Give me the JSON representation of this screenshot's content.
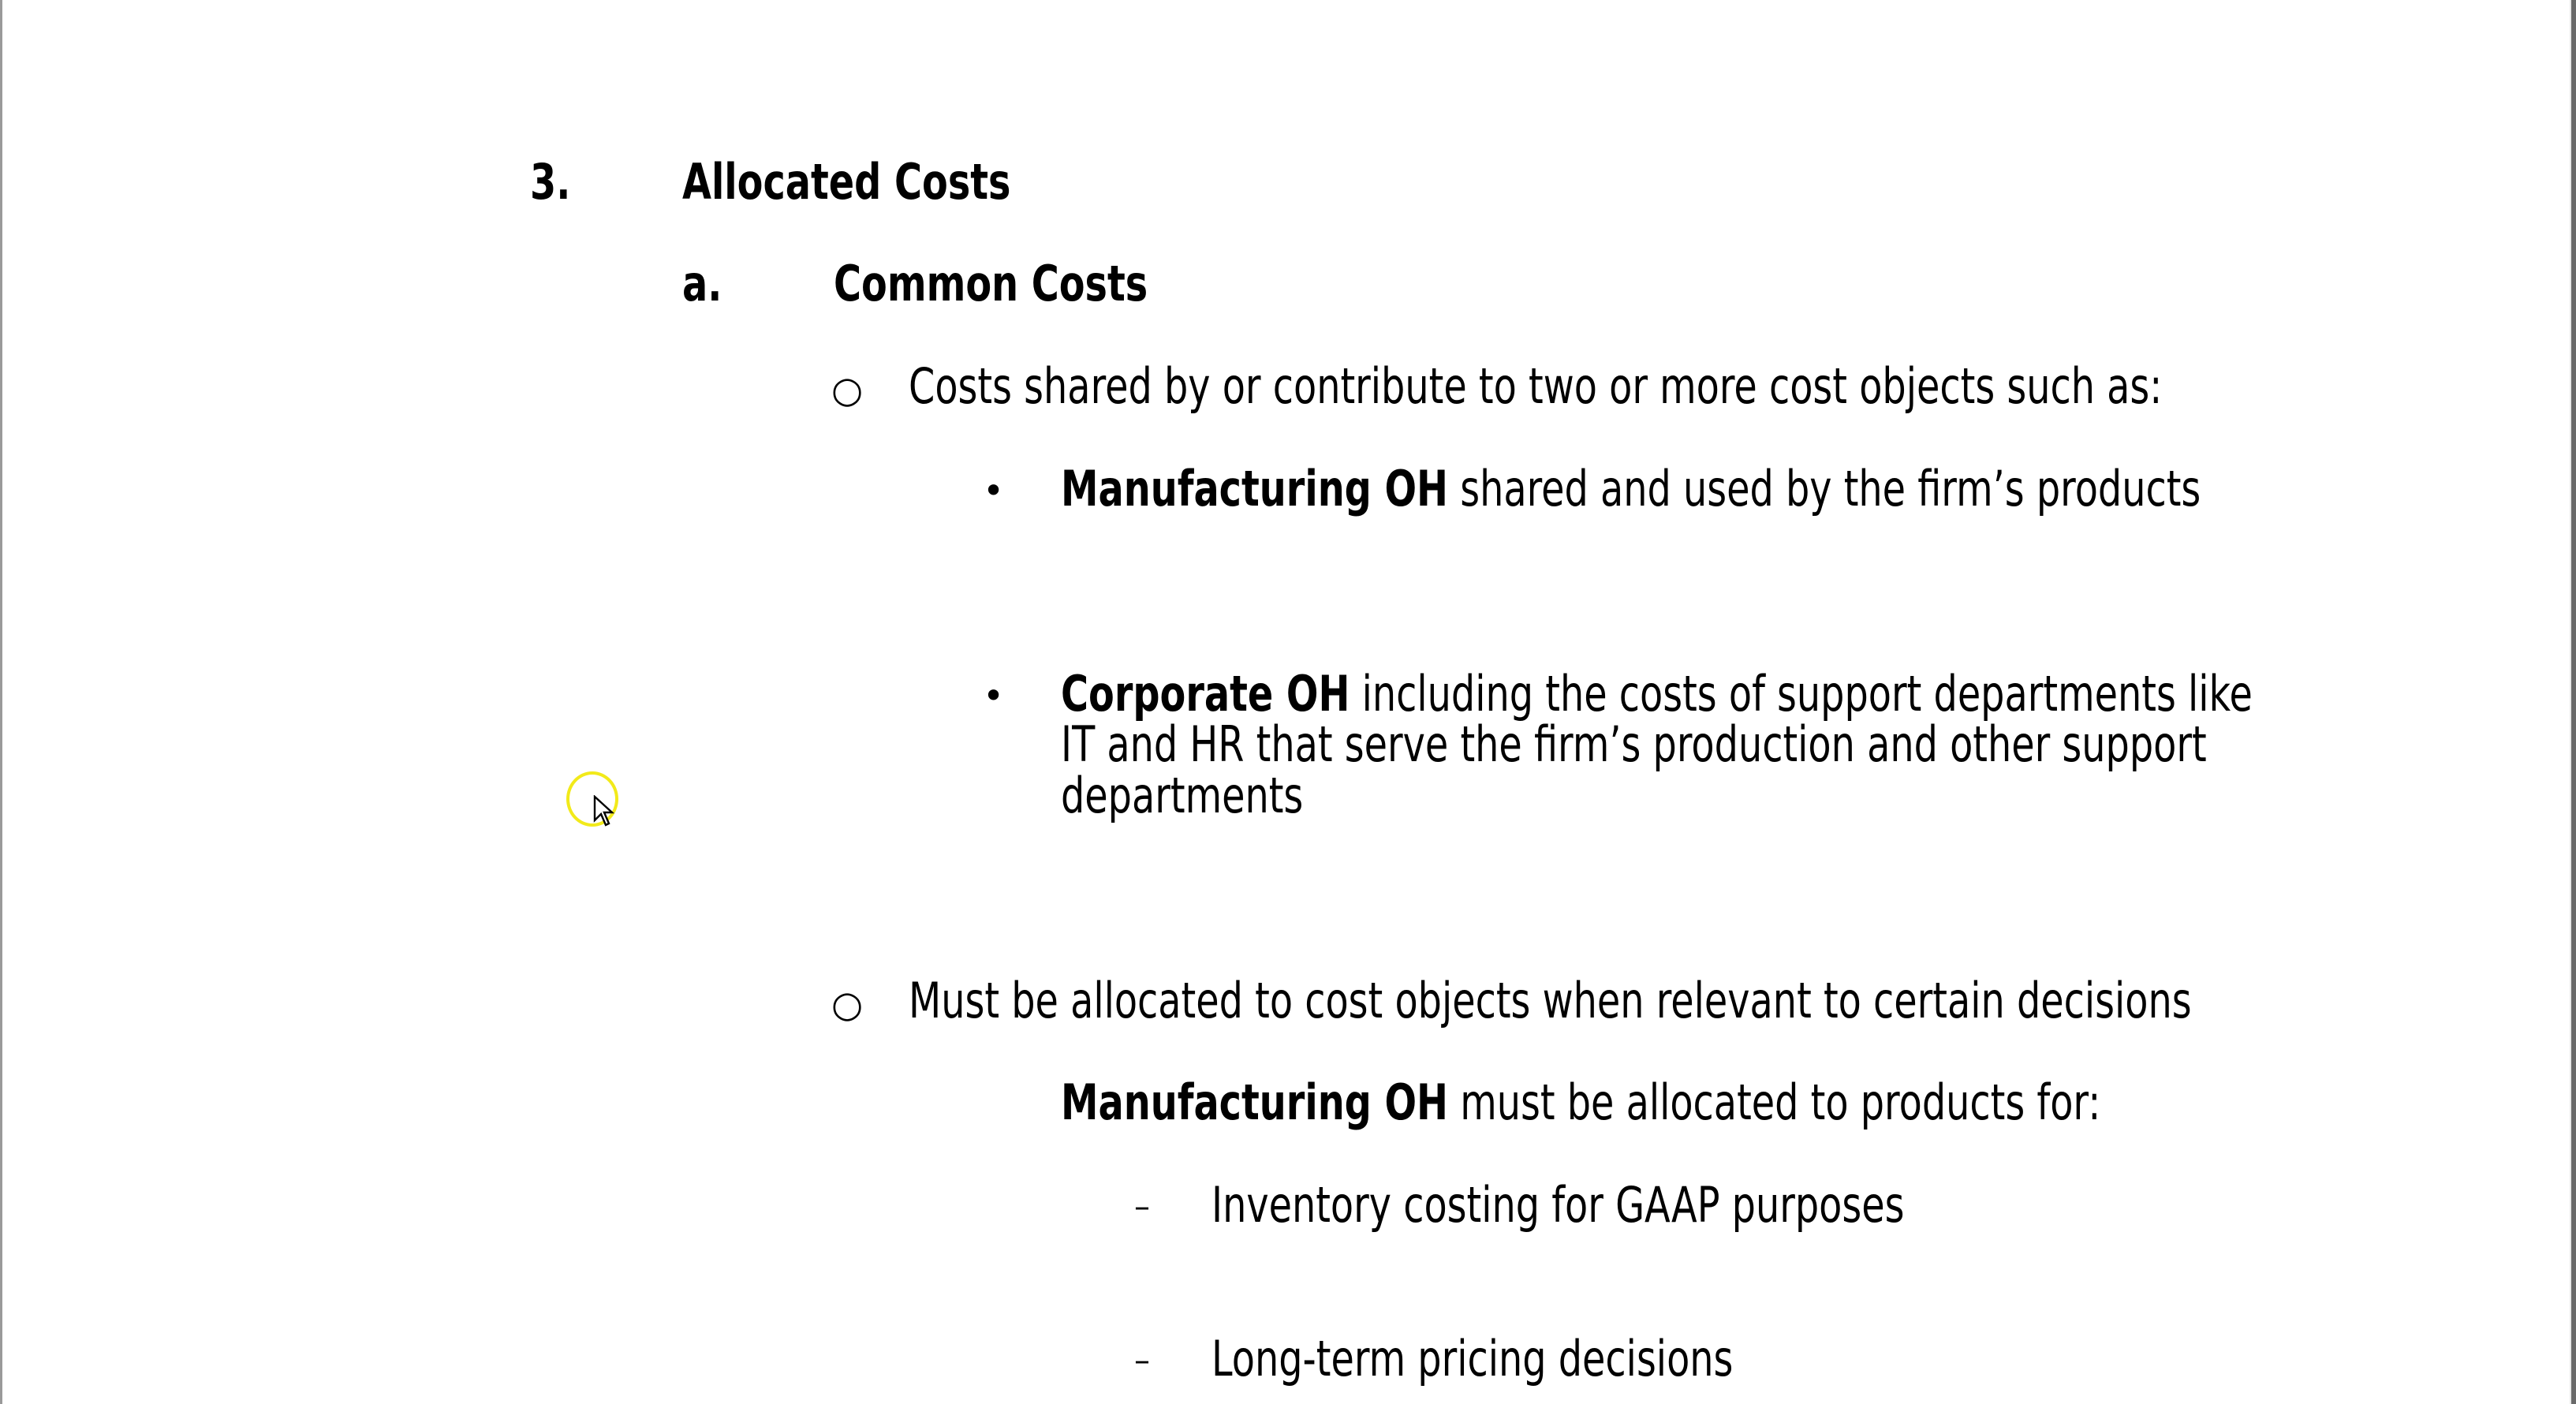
{
  "section": {
    "number": "3.",
    "title": "Allocated Costs"
  },
  "subsection": {
    "letter": "a.",
    "title": "Common Costs"
  },
  "points": [
    {
      "marker": "○",
      "text": "Costs shared by or contribute to two or more cost objects such as:"
    },
    {
      "marker": "○",
      "text": "Must be allocated to cost objects when relevant to certain decisions"
    }
  ],
  "bullets": [
    {
      "marker": "•",
      "bold": "Manufacturing OH",
      "text": " shared and used by the firm’s products"
    },
    {
      "marker": "•",
      "bold": "Corporate OH",
      "line1": " including the costs of support departments like",
      "line2": "IT and HR that serve the firm’s production and other support",
      "line3": "departments"
    }
  ],
  "note": {
    "bold": "Manufacturing OH",
    "text": " must be allocated to products for:"
  },
  "dashes": [
    {
      "marker": "–",
      "text": "Inventory costing for GAAP purposes"
    },
    {
      "marker": "–",
      "text": "Long-term pricing decisions"
    }
  ],
  "cursor": {
    "highlight_color": "#f2ea1a"
  }
}
